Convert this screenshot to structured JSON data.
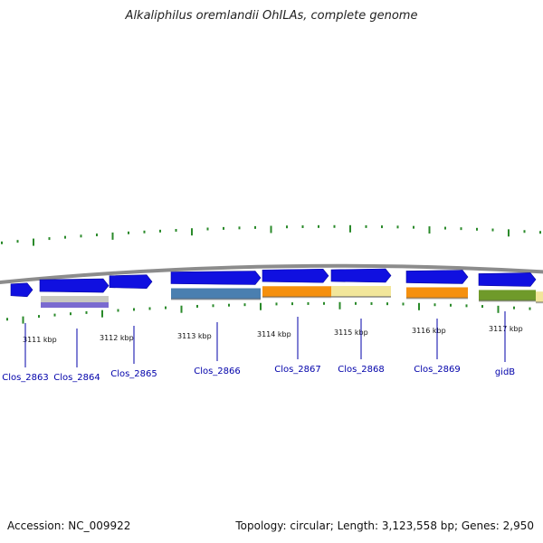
{
  "header": {
    "title": "Alkaliphilus oremlandii OhILAs, complete genome"
  },
  "footer": {
    "accession": "Accession: NC_009922",
    "topology": "Topology: circular; Length: 3,123,558 bp; Genes: 2,950"
  },
  "colors": {
    "backbone": "#8c8c8c",
    "gene_forward": "#1010e0",
    "tick": "#2a8a2a",
    "cog_steel": "#4a7fb0",
    "cog_orange": "#f5900e",
    "cog_yellow": "#f2e69a",
    "cog_olive": "#6f9a2a",
    "cog_grey": "#c8c8c0",
    "cog_purple": "#7a6ad0",
    "label": "#0000aa"
  },
  "chart_data": {
    "type": "genome-map",
    "coordinate_labels": [
      "3111 kbp",
      "3112 kbp",
      "3113 kbp",
      "3114 kbp",
      "3115 kbp",
      "3116 kbp",
      "3117 kbp"
    ],
    "genes": [
      {
        "name": "Clos_2863",
        "strand": "+"
      },
      {
        "name": "Clos_2864",
        "strand": "+"
      },
      {
        "name": "Clos_2865",
        "strand": "+"
      },
      {
        "name": "Clos_2866",
        "strand": "+"
      },
      {
        "name": "Clos_2867",
        "strand": "+"
      },
      {
        "name": "Clos_2868",
        "strand": "+"
      },
      {
        "name": "Clos_2869",
        "strand": "+"
      },
      {
        "name": "gidB",
        "strand": "+"
      }
    ]
  }
}
